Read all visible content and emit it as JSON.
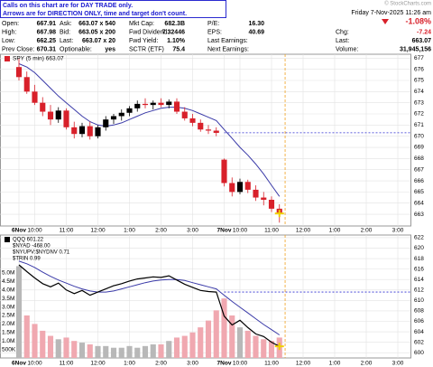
{
  "header": {
    "notice": [
      "Calls on this chart are for DAY TRADE only.",
      "Arrows are for DIRECTION ONLY, time and target don't count."
    ],
    "watermark": "© StockCharts.com",
    "date": "Friday  7-Nov-2025  11:26 am",
    "change_pct": "-1.08%",
    "quote": [
      [
        "Open:",
        "667.91",
        "Ask:",
        "663.07 x 540",
        "Mkt Cap:",
        "682.3B",
        "P/E:",
        "16.30"
      ],
      [
        "High:",
        "667.98",
        "Bid:",
        "663.05 x 200",
        "Fwd Dividend:",
        "7.32446",
        "EPS:",
        "40.69"
      ],
      [
        "Low:",
        "662.25",
        "Last:",
        "663.07 x 20",
        "Fwd Yield:",
        "1.10%",
        "Last Earnings:"
      ],
      [
        "Prev Close:",
        "670.31",
        "Optionable:",
        "yes",
        "SCTR (ETF)",
        "75.4",
        "Next Earnings:"
      ]
    ],
    "right": [
      [
        "Chg:",
        "-7.24"
      ],
      [
        "Last:",
        "663.07"
      ],
      [
        "Volume:",
        "31,945,156"
      ]
    ]
  },
  "chart_data": [
    {
      "type": "candlestick",
      "legend": "SPY (5 min) 663.07",
      "x": [
        0,
        0.25,
        0.5,
        0.75,
        1,
        1.25,
        1.5,
        1.75,
        2,
        2.25,
        2.5,
        2.75,
        3,
        3.25,
        3.5,
        3.75,
        4,
        4.25,
        4.5,
        4.75,
        5,
        5.25,
        5.5,
        5.75,
        6,
        6.25,
        6.5,
        6.75,
        7,
        7.25,
        7.5,
        7.75,
        8,
        8.25
      ],
      "open": [
        676.2,
        675.3,
        674.0,
        673.0,
        672.2,
        671.5,
        672.3,
        670.8,
        670.2,
        670.9,
        670.0,
        670.8,
        671.5,
        671.8,
        672.1,
        672.5,
        672.9,
        672.8,
        673.0,
        672.8,
        673.1,
        672.2,
        671.6,
        671.2,
        670.6,
        670.5,
        667.9,
        665.8,
        665.0,
        665.9,
        665.2,
        664.5,
        664.3,
        663.5
      ],
      "high": [
        677.0,
        675.8,
        674.6,
        673.5,
        672.8,
        672.6,
        672.5,
        671.3,
        671.2,
        671.3,
        671.0,
        671.8,
        672.0,
        672.4,
        672.7,
        673.2,
        673.4,
        673.2,
        673.4,
        673.3,
        673.4,
        672.6,
        672.0,
        671.5,
        671.0,
        670.8,
        668.0,
        666.3,
        666.2,
        666.1,
        665.6,
        665.0,
        664.6,
        663.9
      ],
      "low": [
        675.0,
        673.8,
        672.8,
        671.8,
        671.0,
        671.2,
        670.6,
        669.8,
        669.9,
        669.7,
        669.8,
        670.5,
        671.1,
        671.4,
        671.8,
        672.2,
        672.5,
        672.4,
        672.6,
        672.5,
        672.0,
        671.4,
        670.9,
        670.4,
        670.2,
        670.0,
        665.5,
        664.6,
        664.8,
        664.9,
        664.2,
        663.8,
        663.2,
        662.25
      ],
      "close": [
        675.3,
        674.0,
        673.0,
        672.2,
        671.5,
        672.3,
        670.8,
        670.2,
        670.9,
        670.0,
        670.8,
        671.5,
        671.8,
        672.1,
        672.5,
        672.9,
        672.8,
        673.0,
        672.8,
        673.1,
        672.2,
        671.6,
        671.2,
        670.6,
        670.5,
        670.3,
        665.8,
        665.0,
        665.9,
        665.2,
        664.5,
        664.3,
        663.5,
        663.07
      ],
      "ma": [
        676.5,
        676.2,
        675.7,
        675.0,
        674.3,
        673.6,
        673.0,
        672.4,
        671.8,
        671.3,
        671.0,
        670.9,
        671.0,
        671.2,
        671.5,
        671.8,
        672.1,
        672.3,
        672.5,
        672.6,
        672.6,
        672.5,
        672.3,
        672.0,
        671.7,
        671.4,
        670.6,
        669.8,
        669.0,
        668.3,
        667.5,
        666.6,
        665.6,
        664.6
      ],
      "reference_line": 670.31,
      "current_x": 8.43,
      "xlim": [
        -0.6,
        12.4
      ],
      "xticks": [
        {
          "value": 0,
          "label": "6Nov"
        },
        {
          "value": 0.5,
          "label": "10:00"
        },
        {
          "value": 1.5,
          "label": "11:00"
        },
        {
          "value": 2.5,
          "label": "12:00"
        },
        {
          "value": 3.5,
          "label": "1:00"
        },
        {
          "value": 4.5,
          "label": "2:00"
        },
        {
          "value": 5.5,
          "label": "3:00"
        },
        {
          "value": 6.5,
          "label": "7Nov"
        },
        {
          "value": 7,
          "label": "10:00"
        },
        {
          "value": 8,
          "label": "11:00"
        },
        {
          "value": 9,
          "label": "12:00"
        },
        {
          "value": 10,
          "label": "1:00"
        },
        {
          "value": 11,
          "label": "2:00"
        },
        {
          "value": 12,
          "label": "3:00"
        }
      ],
      "ylim": [
        661.95,
        677.35
      ],
      "yticks": [
        663,
        664,
        665,
        666,
        667,
        668,
        669,
        670,
        671,
        672,
        673,
        674,
        675,
        676,
        677
      ],
      "grid": true,
      "up_color": "#000000",
      "down_color": "#d8202a",
      "ma_color": "#3a3aa8",
      "reference_color": "#2a2ad0",
      "current_color": "#f0a020"
    },
    {
      "type": "line",
      "legend": [
        "QQQ 601.22",
        "$NYAD -468.00",
        "$NYUPV:$NYDNV 0.71",
        "$TRIN 0.99"
      ],
      "x": [
        0,
        0.25,
        0.5,
        0.75,
        1,
        1.25,
        1.5,
        1.75,
        2,
        2.25,
        2.5,
        2.75,
        3,
        3.25,
        3.5,
        3.75,
        4,
        4.25,
        4.5,
        4.75,
        5,
        5.25,
        5.5,
        5.75,
        6,
        6.25,
        6.5,
        6.75,
        7,
        7.25,
        7.5,
        7.75,
        8,
        8.25
      ],
      "close": [
        616.8,
        615.5,
        614.3,
        613.2,
        612.6,
        613.3,
        612.0,
        611.3,
        611.9,
        611.0,
        611.6,
        612.2,
        612.8,
        613.2,
        613.7,
        614.1,
        614.3,
        614.5,
        614.4,
        614.7,
        613.9,
        613.1,
        612.5,
        611.9,
        611.7,
        611.6,
        607.0,
        605.3,
        606.2,
        604.8,
        603.6,
        603.1,
        602.0,
        601.22
      ],
      "ma": [
        617.5,
        617.0,
        616.3,
        615.4,
        614.6,
        613.9,
        613.3,
        612.7,
        612.2,
        611.8,
        611.6,
        611.6,
        611.8,
        612.2,
        612.6,
        613.0,
        613.4,
        613.7,
        613.9,
        614.0,
        614.0,
        613.8,
        613.4,
        613.0,
        612.6,
        612.2,
        611.0,
        609.8,
        608.7,
        607.6,
        606.5,
        605.4,
        604.4,
        603.4
      ],
      "volume": [
        5400000,
        2500000,
        2000000,
        1600000,
        1300000,
        1100000,
        1200000,
        1000000,
        900000,
        800000,
        700000,
        700000,
        600000,
        600000,
        700000,
        600000,
        700000,
        800000,
        800000,
        1000000,
        1200000,
        1300000,
        1500000,
        1800000,
        2200000,
        2800000,
        3500000,
        2500000,
        1800000,
        1600000,
        1300000,
        1100000,
        1000000,
        1200000
      ],
      "reference_line": 611.6,
      "current_x": 8.43,
      "xlim": [
        -0.6,
        12.4
      ],
      "xticks": [
        {
          "value": 0,
          "label": "6Nov"
        },
        {
          "value": 0.5,
          "label": "10:00"
        },
        {
          "value": 1.5,
          "label": "11:00"
        },
        {
          "value": 2.5,
          "label": "12:00"
        },
        {
          "value": 3.5,
          "label": "1:00"
        },
        {
          "value": 4.5,
          "label": "2:00"
        },
        {
          "value": 5.5,
          "label": "3:00"
        },
        {
          "value": 6.5,
          "label": "7Nov"
        },
        {
          "value": 7,
          "label": "10:00"
        },
        {
          "value": 8,
          "label": "11:00"
        },
        {
          "value": 9,
          "label": "12:00"
        },
        {
          "value": 10,
          "label": "1:00"
        },
        {
          "value": 11,
          "label": "2:00"
        },
        {
          "value": 12,
          "label": "3:00"
        }
      ],
      "ylim": [
        599,
        622.5
      ],
      "yticks": [
        600,
        602,
        604,
        606,
        608,
        610,
        612,
        614,
        616,
        618,
        620,
        622
      ],
      "y2lim": [
        0,
        7230000
      ],
      "y2ticks": [
        {
          "value": 500000,
          "label": "500K"
        },
        {
          "value": 1000000,
          "label": "1.0M"
        },
        {
          "value": 1500000,
          "label": "1.5M"
        },
        {
          "value": 2000000,
          "label": "2.0M"
        },
        {
          "value": 2500000,
          "label": "2.5M"
        },
        {
          "value": 3000000,
          "label": "3.0M"
        },
        {
          "value": 3500000,
          "label": "3.5M"
        },
        {
          "value": 4000000,
          "label": "4.0M"
        },
        {
          "value": 4500000,
          "label": "4.5M"
        },
        {
          "value": 5000000,
          "label": "5.0M"
        }
      ],
      "grid": true,
      "line_color": "#000000",
      "ma_color": "#3a3aa8",
      "volume_up_color": "#b8b8b8",
      "volume_down_color": "#f0a8b0",
      "reference_color": "#2a2ad0",
      "current_color": "#f0a020"
    }
  ]
}
